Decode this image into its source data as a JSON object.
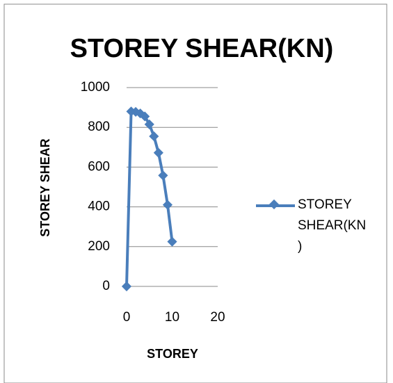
{
  "chart_data": {
    "type": "line",
    "title": "STOREY SHEAR(KN)",
    "x_label": "STOREY",
    "y_label": "STOREY SHEAR",
    "x": [
      0,
      1,
      2,
      3,
      4,
      5,
      6,
      7,
      8,
      9,
      10
    ],
    "series": [
      {
        "name": "STOREY SHEAR(KN)",
        "color": "#4a7ebb",
        "values": [
          0,
          880,
          878,
          870,
          855,
          815,
          755,
          672,
          558,
          410,
          225
        ]
      }
    ],
    "xlim": [
      0,
      20
    ],
    "xticks": [
      0,
      10,
      20
    ],
    "ylim": [
      0,
      1000
    ],
    "yticks": [
      0,
      200,
      400,
      600,
      800,
      1000
    ],
    "grid": true,
    "legend": "right"
  }
}
